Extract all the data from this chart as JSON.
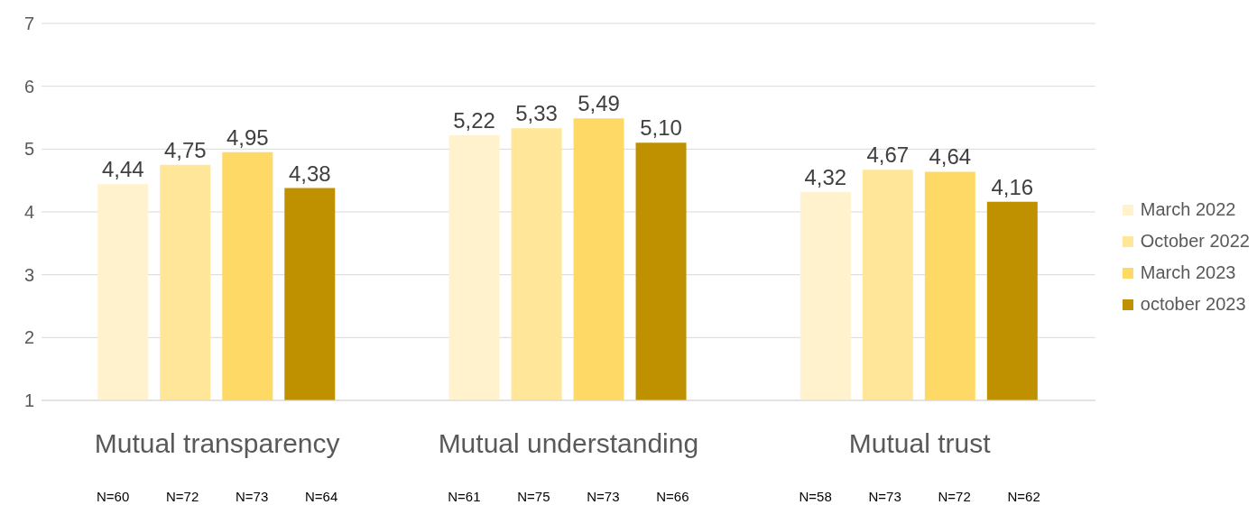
{
  "chart_data": {
    "type": "bar",
    "categories": [
      "Mutual transparency",
      "Mutual understanding",
      "Mutual trust"
    ],
    "series": [
      {
        "name": "March 2022",
        "color": "#fff2cc",
        "values": [
          4.44,
          5.22,
          4.32
        ],
        "value_labels": [
          "4,44",
          "5,22",
          "4,32"
        ]
      },
      {
        "name": "October 2022",
        "color": "#ffe699",
        "values": [
          4.75,
          5.33,
          4.67
        ],
        "value_labels": [
          "4,75",
          "5,33",
          "4,67"
        ]
      },
      {
        "name": "March 2023",
        "color": "#ffd966",
        "values": [
          4.95,
          5.49,
          4.64
        ],
        "value_labels": [
          "4,95",
          "5,49",
          "4,64"
        ]
      },
      {
        "name": "october 2023",
        "color": "#bf9000",
        "values": [
          4.38,
          5.1,
          4.16
        ],
        "value_labels": [
          "4,38",
          "5,10",
          "4,16"
        ]
      }
    ],
    "ylim": [
      1,
      7
    ],
    "yticks": [
      1,
      2,
      3,
      4,
      5,
      6,
      7
    ],
    "grid": "y",
    "legend": "right",
    "annotations": [
      "N=60",
      "N=72",
      "N=73",
      "N=64",
      "N=61",
      "N=75",
      "N=73",
      "N=66",
      "N=58",
      "N=73",
      "N=72",
      "N=62"
    ]
  }
}
